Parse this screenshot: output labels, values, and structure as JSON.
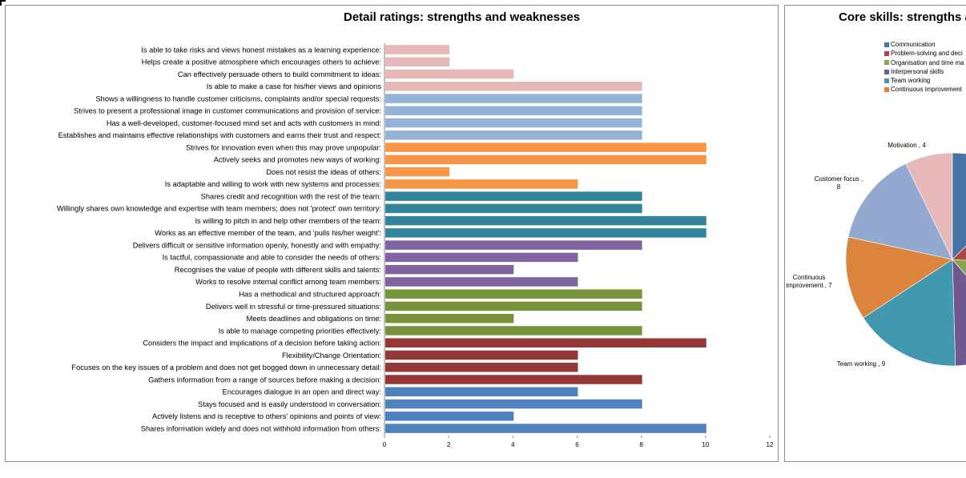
{
  "chart_data": [
    {
      "type": "bar",
      "orientation": "horizontal",
      "title": "Detail ratings: strengths and weaknesses",
      "xlim": [
        0,
        12
      ],
      "xticks": [
        0,
        2,
        4,
        6,
        8,
        10,
        12
      ],
      "grid": false,
      "categories": [
        "Is able to take risks and views honest mistakes as a learning experience:",
        "Helps create a positive atmosphere which encourages others to achieve:",
        "Can effectively persuade others to build commitment to ideas:",
        "Is able to make a case for his/her views and opinions",
        "Shows a willingness to handle customer criticisms, complaints and/or special requests:",
        "Strives to present a professional image in customer communications and provision of service:",
        "Has a well-developed, customer-focused mind set and acts with customers in mind:",
        "Establishes and maintains effective relationships with customers and earns their trust and respect:",
        "Strives for innovation even when this may prove unpopular:",
        "Actively seeks and promotes new ways of working:",
        "Does not resist the ideas of others:",
        "Is adaptable and willing to work with new systems and processes:",
        "Shares credit and recognition with the rest of the team:",
        "Willingly shares own knowledge and expertise with team members; does not 'protect' own territory:",
        "Is willing to pitch in and help other members of the team:",
        "Works  as an effective member of the team, and 'pulls his/her weight':",
        "Delivers difficult or sensitive information openly, honestly and with empathy:",
        "Is tactful, compassionate and able to consider the needs of others:",
        "Recognises the value of people with different skills and talents:",
        "Works to resolve internal conflict among team members:",
        "Has a methodical and structured approach:",
        "Delivers well in stressful or time-pressured situations:",
        "Meets deadlines and obligations on time:",
        "Is able to manage competing priorities effectively:",
        "Considers the impact and implications of a decision before taking action:",
        "Flexibility/Change Orientation:",
        "Focuses on the key issues of a problem and does not get bogged down in unnecessary detail:",
        "Gathers information from a range of sources before making a decision:",
        "Encourages dialogue in an open and direct way:",
        "Stays focused and is easily understood in conversation:",
        "Actively listens and is receptive to others' opinions and points of view:",
        "Shares information widely and does not withhold information from others:"
      ],
      "values": [
        2,
        2,
        4,
        8,
        8,
        8,
        8,
        8,
        10,
        10,
        2,
        6,
        8,
        8,
        10,
        10,
        8,
        6,
        4,
        6,
        8,
        8,
        4,
        8,
        10,
        6,
        6,
        8,
        6,
        8,
        4,
        10
      ],
      "bar_colors": [
        "#e6b9b8",
        "#e6b9b8",
        "#e6b9b8",
        "#e6b9b8",
        "#95b3d7",
        "#95b3d7",
        "#95b3d7",
        "#95b3d7",
        "#f79646",
        "#f79646",
        "#f79646",
        "#f79646",
        "#31859c",
        "#31859c",
        "#31859c",
        "#31859c",
        "#8064a2",
        "#8064a2",
        "#8064a2",
        "#8064a2",
        "#77933c",
        "#77933c",
        "#77933c",
        "#77933c",
        "#953735",
        "#953735",
        "#953735",
        "#953735",
        "#4f81bd",
        "#4f81bd",
        "#4f81bd",
        "#4f81bd"
      ]
    },
    {
      "type": "pie",
      "title": "Core skills: strengths and weaknesses",
      "legend_placement": "top-right",
      "slices": [
        {
          "name": "Communication",
          "value": 7,
          "color": "#4572a7",
          "label": ""
        },
        {
          "name": "Problem-solving and deci",
          "value": 7.5,
          "color": "#aa4643",
          "label": ""
        },
        {
          "name": "Organisation and time ma",
          "value": 7,
          "color": "#89a54e",
          "label": ""
        },
        {
          "name": "Interpersonal skills",
          "value": 6,
          "color": "#71588f",
          "label": ""
        },
        {
          "name": "Team working",
          "value": 9,
          "color": "#4198af",
          "label": "Team working , 9"
        },
        {
          "name": "Continuous improvement",
          "value": 7,
          "color": "#db843d",
          "label": "Continuous improvement , 7"
        },
        {
          "name": "Customer focus",
          "value": 8,
          "color": "#93a9cf",
          "label": "Customer focus , 8"
        },
        {
          "name": "Motivation",
          "value": 4,
          "color": "#e6b9b8",
          "label": "Motivation , 4"
        }
      ],
      "legend": [
        "Communication",
        "Problem-solving and deci",
        "Organisation and time ma",
        "Interpersonal skills",
        "Team working",
        "Continuous improvement"
      ]
    }
  ]
}
